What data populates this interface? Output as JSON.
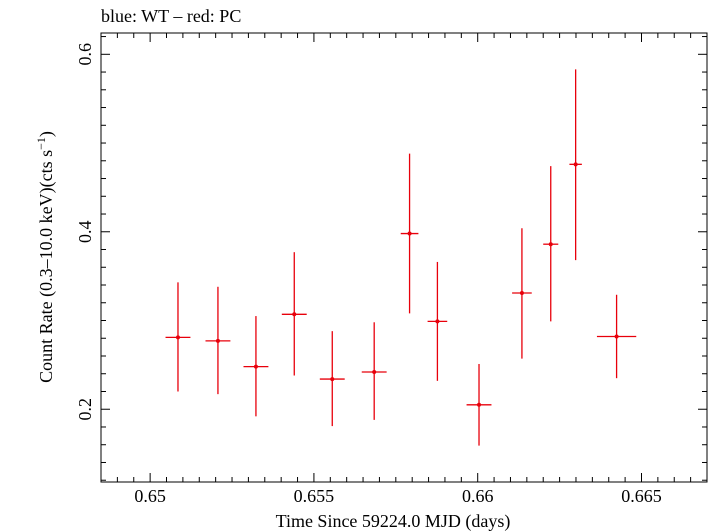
{
  "chart_data": {
    "type": "scatter",
    "title": "blue: WT – red: PC",
    "xlabel": "Time Since 59224.0 MJD (days)",
    "ylabel_main": "Count Rate (0.3–10.0 keV)(cts s",
    "ylabel_sup": "−1",
    "ylabel_tail": ")",
    "xlim": [
      0.6485,
      0.667
    ],
    "ylim": [
      0.118,
      0.624
    ],
    "x_ticks": [
      0.65,
      0.655,
      0.66,
      0.665
    ],
    "x_tick_labels": [
      "0.65",
      "0.655",
      "0.66",
      "0.665"
    ],
    "y_ticks": [
      0.2,
      0.4,
      0.6
    ],
    "y_tick_labels": [
      "0.2",
      "0.4",
      "0.6"
    ],
    "grid": false,
    "legend": "none",
    "series": [
      {
        "color": "#e8000b",
        "points": [
          {
            "x": 0.65085,
            "xerr": 0.00038,
            "y": 0.281,
            "yerr_lo": 0.061,
            "yerr_hi": 0.062
          },
          {
            "x": 0.65207,
            "xerr": 0.00038,
            "y": 0.277,
            "yerr_lo": 0.06,
            "yerr_hi": 0.061
          },
          {
            "x": 0.65323,
            "xerr": 0.00038,
            "y": 0.248,
            "yerr_lo": 0.056,
            "yerr_hi": 0.057
          },
          {
            "x": 0.6544,
            "xerr": 0.00038,
            "y": 0.307,
            "yerr_lo": 0.069,
            "yerr_hi": 0.07
          },
          {
            "x": 0.65556,
            "xerr": 0.00038,
            "y": 0.234,
            "yerr_lo": 0.053,
            "yerr_hi": 0.054
          },
          {
            "x": 0.65684,
            "xerr": 0.00038,
            "y": 0.242,
            "yerr_lo": 0.054,
            "yerr_hi": 0.056
          },
          {
            "x": 0.65792,
            "xerr": 0.00027,
            "y": 0.398,
            "yerr_lo": 0.09,
            "yerr_hi": 0.09
          },
          {
            "x": 0.65877,
            "xerr": 0.0003,
            "y": 0.299,
            "yerr_lo": 0.067,
            "yerr_hi": 0.067
          },
          {
            "x": 0.66004,
            "xerr": 0.00038,
            "y": 0.205,
            "yerr_lo": 0.046,
            "yerr_hi": 0.046
          },
          {
            "x": 0.66135,
            "xerr": 0.0003,
            "y": 0.331,
            "yerr_lo": 0.074,
            "yerr_hi": 0.073
          },
          {
            "x": 0.66223,
            "xerr": 0.00023,
            "y": 0.386,
            "yerr_lo": 0.087,
            "yerr_hi": 0.088
          },
          {
            "x": 0.66299,
            "xerr": 0.00019,
            "y": 0.476,
            "yerr_lo": 0.108,
            "yerr_hi": 0.107
          },
          {
            "x": 0.66424,
            "xerr": 0.0006,
            "y": 0.282,
            "yerr_lo": 0.047,
            "yerr_hi": 0.047
          }
        ]
      }
    ]
  }
}
